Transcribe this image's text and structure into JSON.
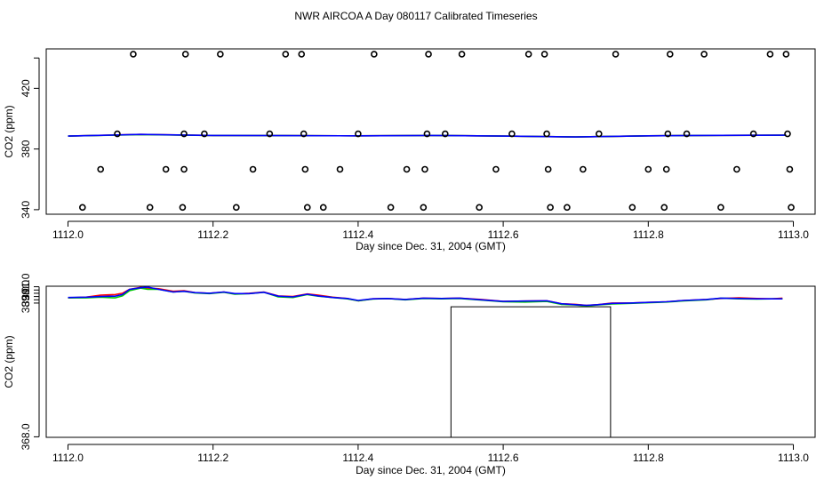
{
  "title": "NWR AIRCOA A  Day 080117  Calibrated Timeseries",
  "colors": {
    "red": "#ff0000",
    "green": "#00cc00",
    "blue": "#0000ff",
    "axis": "#000000"
  },
  "chart_data": [
    {
      "type": "scatter",
      "xlabel": "Day since Dec. 31, 2004 (GMT)",
      "ylabel": "CO2 (ppm)",
      "xlim": [
        1111.97,
        1113.03
      ],
      "ylim": [
        337,
        446
      ],
      "x_ticks": [
        1112.0,
        1112.2,
        1112.4,
        1112.6,
        1112.8,
        1113.0
      ],
      "x_tick_labels": [
        "1112.0",
        "1112.2",
        "1112.4",
        "1112.6",
        "1112.8",
        "1113.0"
      ],
      "y_ticks": [
        340,
        380,
        420
      ],
      "y_tick_labels": [
        "340",
        "380",
        "420"
      ],
      "extra_y_ticks": [
        440
      ],
      "points": [
        [
          1112.02,
          341.5
        ],
        [
          1112.045,
          366.6
        ],
        [
          1112.068,
          390.0
        ],
        [
          1112.09,
          442.5
        ],
        [
          1112.113,
          341.5
        ],
        [
          1112.135,
          366.6
        ],
        [
          1112.158,
          341.5
        ],
        [
          1112.16,
          366.6
        ],
        [
          1112.16,
          390.0
        ],
        [
          1112.162,
          442.5
        ],
        [
          1112.188,
          390.0
        ],
        [
          1112.21,
          442.5
        ],
        [
          1112.232,
          341.5
        ],
        [
          1112.255,
          366.6
        ],
        [
          1112.278,
          390.0
        ],
        [
          1112.3,
          442.5
        ],
        [
          1112.322,
          442.5
        ],
        [
          1112.325,
          390.0
        ],
        [
          1112.327,
          366.6
        ],
        [
          1112.33,
          341.5
        ],
        [
          1112.352,
          341.5
        ],
        [
          1112.375,
          366.6
        ],
        [
          1112.4,
          390.0
        ],
        [
          1112.422,
          442.5
        ],
        [
          1112.445,
          341.5
        ],
        [
          1112.467,
          366.6
        ],
        [
          1112.49,
          341.5
        ],
        [
          1112.492,
          366.6
        ],
        [
          1112.495,
          390.0
        ],
        [
          1112.497,
          442.5
        ],
        [
          1112.52,
          390.0
        ],
        [
          1112.543,
          442.5
        ],
        [
          1112.567,
          341.5
        ],
        [
          1112.59,
          366.6
        ],
        [
          1112.612,
          390.0
        ],
        [
          1112.635,
          442.5
        ],
        [
          1112.657,
          442.5
        ],
        [
          1112.66,
          390.0
        ],
        [
          1112.662,
          366.6
        ],
        [
          1112.665,
          341.5
        ],
        [
          1112.688,
          341.5
        ],
        [
          1112.71,
          366.6
        ],
        [
          1112.732,
          390.0
        ],
        [
          1112.755,
          442.5
        ],
        [
          1112.778,
          341.5
        ],
        [
          1112.8,
          366.6
        ],
        [
          1112.822,
          341.5
        ],
        [
          1112.825,
          366.6
        ],
        [
          1112.827,
          390.0
        ],
        [
          1112.83,
          442.5
        ],
        [
          1112.853,
          390.0
        ],
        [
          1112.877,
          442.5
        ],
        [
          1112.9,
          341.5
        ],
        [
          1112.922,
          366.6
        ],
        [
          1112.945,
          390.0
        ],
        [
          1112.968,
          442.5
        ],
        [
          1112.99,
          442.5
        ],
        [
          1112.992,
          390.0
        ],
        [
          1112.995,
          366.6
        ],
        [
          1112.997,
          341.5
        ]
      ],
      "series": [
        {
          "color": "red",
          "x": [
            1112.0,
            1112.1,
            1112.2,
            1112.3,
            1112.4,
            1112.5,
            1112.6,
            1112.7,
            1112.8,
            1112.9,
            1112.99
          ],
          "y": [
            388.5,
            389.6,
            388.9,
            388.8,
            388.7,
            388.9,
            388.5,
            387.9,
            388.7,
            389.0,
            389.1
          ]
        },
        {
          "color": "green",
          "x": [
            1112.0,
            1112.1,
            1112.2,
            1112.3,
            1112.4,
            1112.5,
            1112.6,
            1112.7,
            1112.8,
            1112.9,
            1112.99
          ],
          "y": [
            388.5,
            389.5,
            388.9,
            388.8,
            388.7,
            388.9,
            388.5,
            387.9,
            388.7,
            389.0,
            389.1
          ]
        },
        {
          "color": "blue",
          "x": [
            1112.0,
            1112.1,
            1112.2,
            1112.3,
            1112.4,
            1112.5,
            1112.6,
            1112.7,
            1112.8,
            1112.9,
            1112.99
          ],
          "y": [
            388.5,
            389.6,
            388.9,
            388.8,
            388.7,
            388.9,
            388.5,
            387.9,
            388.7,
            389.0,
            389.1
          ]
        }
      ]
    },
    {
      "type": "line",
      "xlabel": "Day since Dec. 31, 2004 (GMT)",
      "ylabel": "CO2 (ppm)",
      "xlim": [
        1111.97,
        1113.03
      ],
      "ylim": [
        367.92,
        391.08
      ],
      "x_ticks": [
        1112.0,
        1112.2,
        1112.4,
        1112.6,
        1112.8,
        1113.0
      ],
      "x_tick_labels": [
        "1112.0",
        "1112.2",
        "1112.4",
        "1112.6",
        "1112.8",
        "1113.0"
      ],
      "y_ticks": [
        368.0,
        389.0,
        390.0,
        391.0
      ],
      "y_tick_labels": [
        "368.0",
        "389.0",
        "390.0",
        "391.0"
      ],
      "extra_y_ticks": [
        388.5,
        389.5,
        390.5
      ],
      "bracket": {
        "x0": 1112.528,
        "x1": 1112.748,
        "y": 387.935
      },
      "series": [
        {
          "color": "red",
          "x": [
            1112.0,
            1112.025,
            1112.045,
            1112.065,
            1112.075,
            1112.085,
            1112.1,
            1112.11,
            1112.125,
            1112.145,
            1112.16,
            1112.175,
            1112.195,
            1112.215,
            1112.23,
            1112.25,
            1112.27,
            1112.29,
            1112.31,
            1112.33,
            1112.345,
            1112.365,
            1112.385,
            1112.4,
            1112.42,
            1112.44,
            1112.465,
            1112.49,
            1112.515,
            1112.54,
            1112.57,
            1112.6,
            1112.63,
            1112.66,
            1112.68,
            1112.7,
            1112.715,
            1112.73,
            1112.75,
            1112.775,
            1112.8,
            1112.825,
            1112.85,
            1112.88,
            1112.9,
            1112.925,
            1112.95,
            1112.97,
            1112.985
          ],
          "y": [
            389.3,
            389.4,
            389.7,
            389.8,
            390.0,
            390.6,
            390.9,
            390.8,
            390.7,
            390.3,
            390.4,
            390.1,
            390.0,
            390.2,
            389.9,
            390.0,
            390.2,
            389.6,
            389.5,
            389.9,
            389.7,
            389.4,
            389.2,
            388.85,
            389.15,
            389.2,
            389.05,
            389.25,
            389.2,
            389.25,
            389.05,
            388.75,
            388.8,
            388.85,
            388.4,
            388.3,
            388.15,
            388.25,
            388.5,
            388.5,
            388.6,
            388.7,
            388.9,
            389.05,
            389.2,
            389.3,
            389.2,
            389.15,
            389.25
          ]
        },
        {
          "color": "green",
          "x": [
            1112.0,
            1112.025,
            1112.045,
            1112.065,
            1112.075,
            1112.085,
            1112.1,
            1112.11,
            1112.125,
            1112.145,
            1112.16,
            1112.175,
            1112.195,
            1112.215,
            1112.23,
            1112.25,
            1112.27,
            1112.29,
            1112.31,
            1112.33,
            1112.345,
            1112.365,
            1112.385,
            1112.4,
            1112.42,
            1112.44,
            1112.465,
            1112.49,
            1112.515,
            1112.54,
            1112.57,
            1112.6,
            1112.63,
            1112.66,
            1112.68,
            1112.7,
            1112.715,
            1112.73,
            1112.75,
            1112.775,
            1112.8,
            1112.825,
            1112.85,
            1112.88,
            1112.9,
            1112.925,
            1112.95,
            1112.97,
            1112.985
          ],
          "y": [
            389.3,
            389.3,
            389.4,
            389.3,
            389.6,
            390.4,
            390.8,
            390.6,
            390.6,
            390.2,
            390.3,
            390.05,
            389.95,
            390.15,
            389.85,
            389.95,
            390.15,
            389.45,
            389.35,
            389.8,
            389.55,
            389.35,
            389.15,
            388.85,
            389.1,
            389.2,
            389.0,
            389.2,
            389.15,
            389.2,
            388.95,
            388.7,
            388.65,
            388.75,
            388.3,
            388.2,
            388.05,
            388.2,
            388.35,
            388.45,
            388.55,
            388.65,
            388.85,
            389.0,
            389.25,
            389.15,
            389.1,
            389.15,
            389.15
          ]
        },
        {
          "color": "blue",
          "x": [
            1112.0,
            1112.025,
            1112.045,
            1112.065,
            1112.075,
            1112.085,
            1112.1,
            1112.11,
            1112.125,
            1112.145,
            1112.16,
            1112.175,
            1112.195,
            1112.215,
            1112.23,
            1112.25,
            1112.27,
            1112.29,
            1112.31,
            1112.33,
            1112.345,
            1112.365,
            1112.385,
            1112.4,
            1112.42,
            1112.44,
            1112.465,
            1112.49,
            1112.515,
            1112.54,
            1112.57,
            1112.6,
            1112.63,
            1112.66,
            1112.68,
            1112.7,
            1112.715,
            1112.73,
            1112.75,
            1112.775,
            1112.8,
            1112.825,
            1112.85,
            1112.88,
            1112.9,
            1112.925,
            1112.95,
            1112.97,
            1112.985
          ],
          "y": [
            389.35,
            389.4,
            389.5,
            389.55,
            389.8,
            390.6,
            390.85,
            390.95,
            390.6,
            390.2,
            390.3,
            390.1,
            390.0,
            390.2,
            389.95,
            389.95,
            390.15,
            389.55,
            389.45,
            389.85,
            389.6,
            389.35,
            389.2,
            388.9,
            389.15,
            389.2,
            389.05,
            389.25,
            389.2,
            389.25,
            389.0,
            388.75,
            388.8,
            388.85,
            388.4,
            388.25,
            388.15,
            388.25,
            388.45,
            388.5,
            388.6,
            388.7,
            388.9,
            389.05,
            389.25,
            389.2,
            389.15,
            389.15,
            389.15
          ]
        }
      ]
    }
  ]
}
